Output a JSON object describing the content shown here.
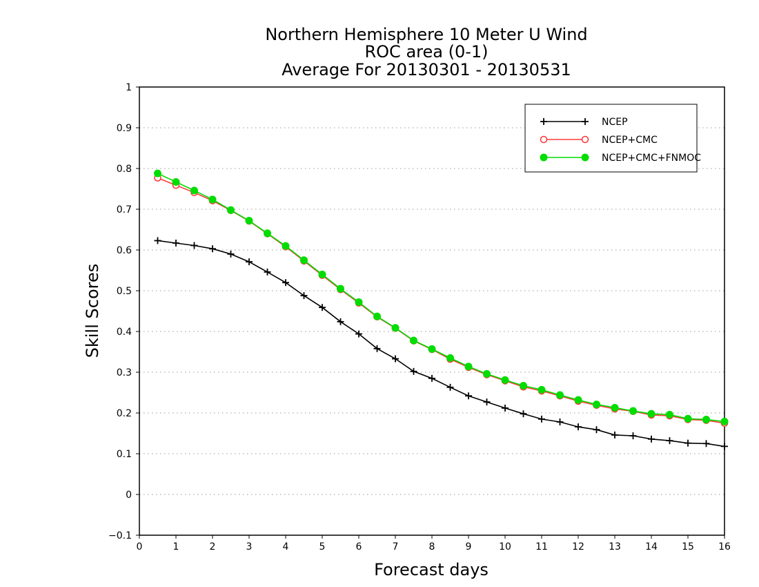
{
  "chart_data": {
    "type": "line",
    "title_lines": [
      "Northern Hemisphere 10 Meter U Wind",
      "ROC area (0-1)",
      "Average For 20130301 - 20130531"
    ],
    "xlabel": "Forecast days",
    "ylabel": "Skill Scores",
    "xlim": [
      0,
      16
    ],
    "ylim": [
      -0.1,
      1
    ],
    "xticks": [
      "0",
      "1",
      "2",
      "3",
      "4",
      "5",
      "6",
      "7",
      "8",
      "9",
      "10",
      "11",
      "12",
      "13",
      "14",
      "15",
      "16"
    ],
    "yticks": [
      "-0.1",
      "0",
      "0.1",
      "0.2",
      "0.3",
      "0.4",
      "0.5",
      "0.6",
      "0.7",
      "0.8",
      "0.9",
      "1"
    ],
    "grid": "horizontal dotted",
    "legend_position": "top-right",
    "x": [
      0.5,
      1,
      1.5,
      2,
      2.5,
      3,
      3.5,
      4,
      4.5,
      5,
      5.5,
      6,
      6.5,
      7,
      7.5,
      8,
      8.5,
      9,
      9.5,
      10,
      10.5,
      11,
      11.5,
      12,
      12.5,
      13,
      13.5,
      14,
      14.5,
      15,
      15.5,
      16
    ],
    "series": [
      {
        "name": "NCEP",
        "color": "#000000",
        "marker": "plus",
        "values": [
          0.623,
          0.617,
          0.611,
          0.603,
          0.59,
          0.571,
          0.546,
          0.52,
          0.488,
          0.459,
          0.424,
          0.394,
          0.358,
          0.333,
          0.302,
          0.285,
          0.263,
          0.242,
          0.227,
          0.212,
          0.198,
          0.185,
          0.178,
          0.166,
          0.159,
          0.146,
          0.144,
          0.136,
          0.132,
          0.126,
          0.125,
          0.118
        ]
      },
      {
        "name": "NCEP+CMC",
        "color": "#ff3b3b",
        "marker": "open-circle",
        "values": [
          0.777,
          0.759,
          0.741,
          0.721,
          0.697,
          0.671,
          0.64,
          0.608,
          0.573,
          0.538,
          0.503,
          0.47,
          0.436,
          0.408,
          0.377,
          0.356,
          0.332,
          0.312,
          0.294,
          0.279,
          0.264,
          0.254,
          0.242,
          0.229,
          0.219,
          0.21,
          0.204,
          0.195,
          0.193,
          0.184,
          0.182,
          0.175
        ]
      },
      {
        "name": "NCEP+CMC+FNMOC",
        "color": "#00dd00",
        "marker": "filled-circle",
        "values": [
          0.788,
          0.767,
          0.746,
          0.724,
          0.698,
          0.672,
          0.641,
          0.61,
          0.575,
          0.54,
          0.505,
          0.472,
          0.437,
          0.409,
          0.378,
          0.357,
          0.335,
          0.314,
          0.296,
          0.281,
          0.267,
          0.257,
          0.244,
          0.232,
          0.221,
          0.213,
          0.205,
          0.198,
          0.196,
          0.186,
          0.184,
          0.179
        ]
      }
    ]
  }
}
